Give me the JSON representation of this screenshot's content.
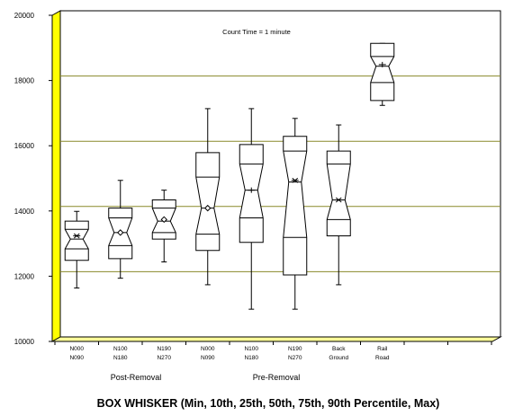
{
  "chart_data": {
    "type": "boxplot",
    "title": "BOX WHISKER (Min, 10th, 25th, 50th, 75th, 90th Percentile, Max)",
    "annotation": "Count Time = 1 minute",
    "ylim": [
      10000,
      20000
    ],
    "yticks": [
      10000,
      12000,
      14000,
      16000,
      18000,
      20000
    ],
    "ytick_labels": [
      "10000",
      "12000",
      "14000",
      "16000",
      "18000",
      "20000"
    ],
    "grid": {
      "horizontal": [
        12000,
        14000,
        16000,
        18000
      ],
      "color": "#8a8a2a"
    },
    "colors": {
      "wall_side": "#ffff00",
      "wall_bottom": "#ffff99",
      "box": "#ffffff",
      "line": "#000000"
    },
    "groups": [
      {
        "label": "Post-Removal",
        "categories": [
          0,
          1,
          2
        ]
      },
      {
        "label": "Pre-Removal",
        "categories": [
          3,
          4,
          5
        ]
      }
    ],
    "categories": [
      {
        "line1": "N000",
        "line2": "N090",
        "min": 11500,
        "p10": 12350,
        "p25": 12700,
        "median": 13000,
        "mean": 13100,
        "marker": "x",
        "p75": 13300,
        "p90": 13550,
        "max": 13850
      },
      {
        "line1": "N100",
        "line2": "N180",
        "min": 11800,
        "p10": 12400,
        "p25": 12800,
        "median": 13200,
        "mean": 13200,
        "marker": "diamond",
        "p75": 13650,
        "p90": 13950,
        "max": 14800
      },
      {
        "line1": "N190",
        "line2": "N270",
        "min": 12300,
        "p10": 13000,
        "p25": 13200,
        "median": 13550,
        "mean": 13600,
        "marker": "diamond",
        "p75": 13950,
        "p90": 14200,
        "max": 14500
      },
      {
        "line1": "N000",
        "line2": "N090",
        "min": 11600,
        "p10": 12650,
        "p25": 13150,
        "median": 13950,
        "mean": 13950,
        "marker": "diamond",
        "p75": 14900,
        "p90": 15650,
        "max": 17000
      },
      {
        "line1": "N100",
        "line2": "N180",
        "min": 10850,
        "p10": 12900,
        "p25": 13650,
        "median": 14500,
        "mean": 14500,
        "marker": "plus",
        "p75": 15300,
        "p90": 15900,
        "max": 17000
      },
      {
        "line1": "N190",
        "line2": "N270",
        "min": 10850,
        "p10": 11900,
        "p25": 13050,
        "median": 14750,
        "mean": 14800,
        "marker": "x",
        "p75": 15700,
        "p90": 16150,
        "max": 16700
      },
      {
        "line1": "Back",
        "line2": "Ground",
        "min": 11600,
        "p10": 13100,
        "p25": 13600,
        "median": 14200,
        "mean": 14200,
        "marker": "x",
        "p75": 15300,
        "p90": 15700,
        "max": 16500
      },
      {
        "line1": "Rail",
        "line2": "Road",
        "min": 17100,
        "p10": 17250,
        "p25": 17800,
        "median": 18300,
        "mean": 18350,
        "marker": "plus",
        "p75": 18600,
        "p90": 19000,
        "max": 19000
      }
    ]
  }
}
